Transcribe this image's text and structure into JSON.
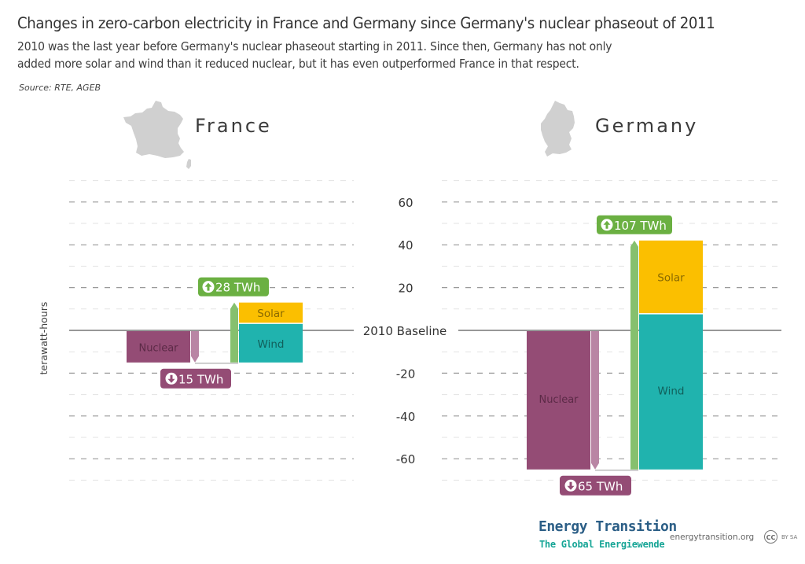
{
  "header": {
    "title": "Changes in zero-carbon electricity in France and Germany since Germany's nuclear phaseout of 2011",
    "subtitle_line1": "2010 was the last year before Germany's nuclear phaseout starting in 2011. Since then, Germany has not only",
    "subtitle_line2": "added more solar and wind than it reduced nuclear, but it has even outperformed France in that respect.",
    "source": "Source:  RTE, AGEB"
  },
  "colors": {
    "nuclear": "#944c75",
    "nuclear_arrow": "#b985a4",
    "renewable_arrow": "#86c06e",
    "label_green": "#6bb042",
    "solar": "#fbbf00",
    "wind": "#20b3ae",
    "map": "#d0d0d0"
  },
  "footer": {
    "brand_line1": "Energy Transition",
    "brand_line2": "The Global Energiewende",
    "url": "energytransition.org",
    "cc": "CC",
    "license": "BY SA"
  },
  "chart_data": {
    "type": "bar",
    "title": "Changes in zero-carbon electricity in France and Germany since Germany's nuclear phaseout of 2011",
    "ylabel": "terawatt-hours",
    "ylim": [
      -70,
      70
    ],
    "yticks": [
      60,
      40,
      20,
      -20,
      -40,
      -60
    ],
    "ytick_labels": [
      "60",
      "40",
      "20",
      "-20",
      "-40",
      "-60"
    ],
    "baseline_label": "2010 Baseline",
    "grid": true,
    "unit": "TWh",
    "panels": [
      {
        "country": "France",
        "nuclear": -15,
        "wind": 18,
        "solar": 10,
        "nuclear_label": "Nuclear",
        "wind_label": "Wind",
        "solar_label": "Solar",
        "decrease_label": "15 TWh",
        "increase_label": "28 TWh"
      },
      {
        "country": "Germany",
        "nuclear": -65,
        "wind": 72.5,
        "solar": 34.5,
        "nuclear_label": "Nuclear",
        "wind_label": "Wind",
        "solar_label": "Solar",
        "decrease_label": "65 TWh",
        "increase_label": "107 TWh"
      }
    ]
  }
}
